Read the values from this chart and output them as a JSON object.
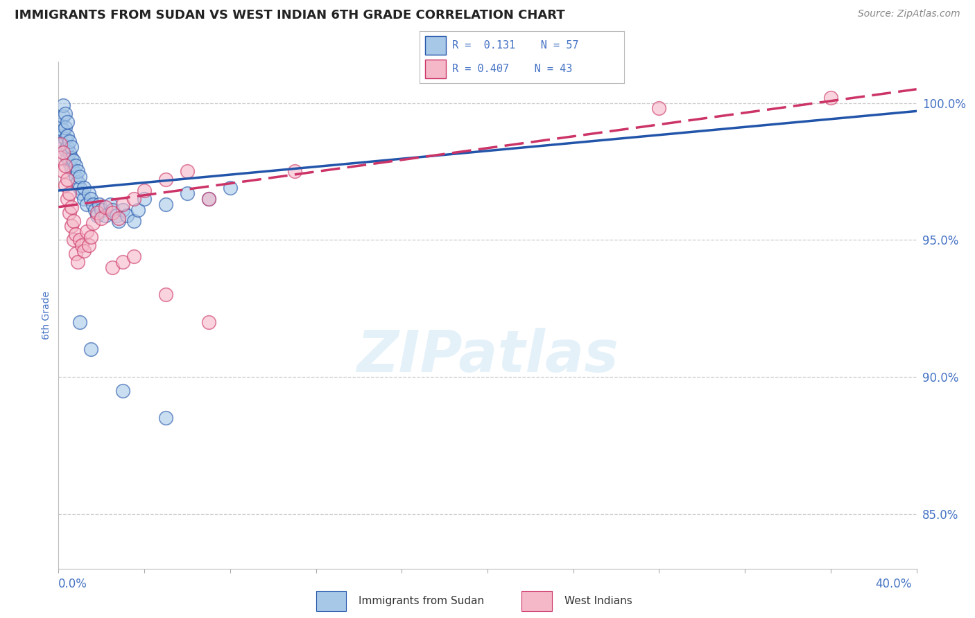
{
  "title": "IMMIGRANTS FROM SUDAN VS WEST INDIAN 6TH GRADE CORRELATION CHART",
  "source": "Source: ZipAtlas.com",
  "ylabel": "6th Grade",
  "ylabel_right_labels": [
    "100.0%",
    "95.0%",
    "90.0%",
    "85.0%"
  ],
  "ylabel_right_values": [
    1.0,
    0.95,
    0.9,
    0.85
  ],
  "xmin": 0.0,
  "xmax": 0.4,
  "ymin": 0.83,
  "ymax": 1.015,
  "legend_blue_r": "0.131",
  "legend_blue_n": "57",
  "legend_pink_r": "0.407",
  "legend_pink_n": "43",
  "legend_label_blue": "Immigrants from Sudan",
  "legend_label_pink": "West Indians",
  "blue_color": "#a8c8e8",
  "pink_color": "#f5b8c8",
  "trendline_blue_color": "#2255aa",
  "trendline_pink_color": "#cc3366",
  "watermark_text": "ZIPatlas",
  "grid_color": "#cccccc",
  "background_color": "#ffffff",
  "title_color": "#222222",
  "axis_label_color": "#4472c4",
  "source_color": "#888888",
  "blue_points_x": [
    0.001,
    0.001,
    0.002,
    0.002,
    0.002,
    0.002,
    0.003,
    0.003,
    0.003,
    0.003,
    0.004,
    0.004,
    0.004,
    0.004,
    0.005,
    0.005,
    0.005,
    0.006,
    0.006,
    0.006,
    0.007,
    0.007,
    0.008,
    0.008,
    0.009,
    0.009,
    0.01,
    0.01,
    0.011,
    0.012,
    0.012,
    0.013,
    0.014,
    0.015,
    0.016,
    0.017,
    0.018,
    0.019,
    0.02,
    0.022,
    0.024,
    0.025,
    0.027,
    0.028,
    0.03,
    0.032,
    0.035,
    0.037,
    0.04,
    0.05,
    0.06,
    0.07,
    0.08,
    0.01,
    0.015,
    0.03,
    0.05
  ],
  "blue_points_y": [
    0.988,
    0.992,
    0.985,
    0.99,
    0.995,
    0.999,
    0.983,
    0.987,
    0.991,
    0.996,
    0.98,
    0.984,
    0.988,
    0.993,
    0.978,
    0.982,
    0.986,
    0.976,
    0.98,
    0.984,
    0.975,
    0.979,
    0.973,
    0.977,
    0.971,
    0.975,
    0.969,
    0.973,
    0.967,
    0.965,
    0.969,
    0.963,
    0.967,
    0.965,
    0.963,
    0.961,
    0.959,
    0.963,
    0.961,
    0.959,
    0.963,
    0.961,
    0.959,
    0.957,
    0.961,
    0.959,
    0.957,
    0.961,
    0.965,
    0.963,
    0.967,
    0.965,
    0.969,
    0.92,
    0.91,
    0.895,
    0.885
  ],
  "pink_points_x": [
    0.001,
    0.001,
    0.002,
    0.002,
    0.003,
    0.003,
    0.004,
    0.004,
    0.005,
    0.005,
    0.006,
    0.006,
    0.007,
    0.007,
    0.008,
    0.008,
    0.009,
    0.01,
    0.011,
    0.012,
    0.013,
    0.014,
    0.015,
    0.016,
    0.018,
    0.02,
    0.022,
    0.025,
    0.028,
    0.03,
    0.035,
    0.04,
    0.05,
    0.06,
    0.07,
    0.025,
    0.03,
    0.035,
    0.05,
    0.07,
    0.11,
    0.28,
    0.36
  ],
  "pink_points_y": [
    0.98,
    0.985,
    0.975,
    0.982,
    0.97,
    0.977,
    0.965,
    0.972,
    0.96,
    0.967,
    0.955,
    0.962,
    0.95,
    0.957,
    0.945,
    0.952,
    0.942,
    0.95,
    0.948,
    0.946,
    0.953,
    0.948,
    0.951,
    0.956,
    0.96,
    0.958,
    0.962,
    0.96,
    0.958,
    0.963,
    0.965,
    0.968,
    0.972,
    0.975,
    0.965,
    0.94,
    0.942,
    0.944,
    0.93,
    0.92,
    0.975,
    0.998,
    1.002
  ]
}
